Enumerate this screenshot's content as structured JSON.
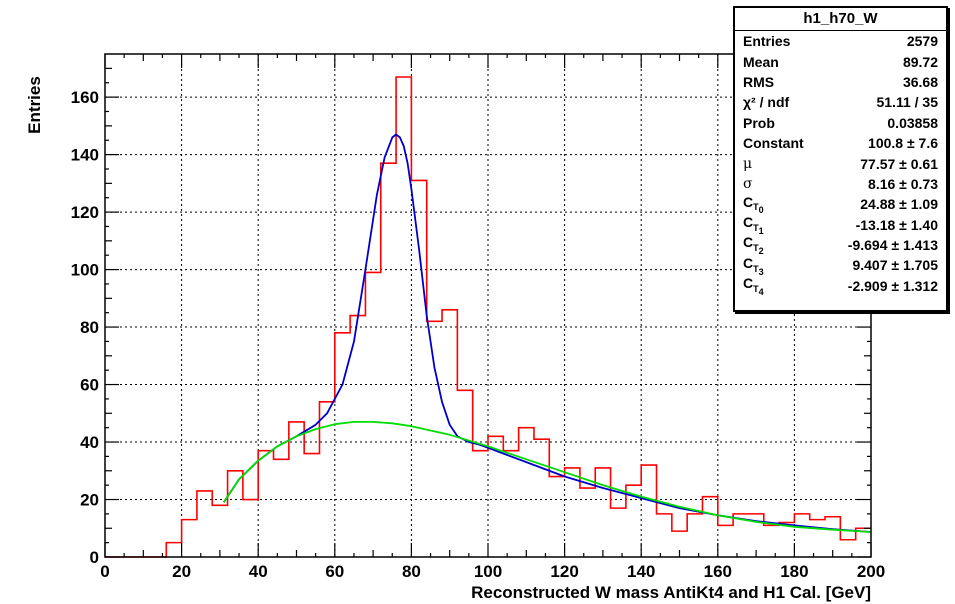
{
  "chart_data": {
    "type": "bar",
    "histogram": {
      "bin_edges_start": 0,
      "bin_width": 4,
      "values": [
        0,
        0,
        0,
        0,
        5,
        13,
        23,
        18,
        30,
        20,
        37,
        34,
        47,
        36,
        54,
        78,
        84,
        99,
        137,
        167,
        131,
        82,
        86,
        58,
        37,
        42,
        37,
        45,
        41,
        28,
        31,
        24,
        31,
        17,
        25,
        32,
        15,
        9,
        15,
        21,
        11,
        15,
        15,
        11,
        12,
        15,
        13,
        14,
        6,
        10
      ],
      "color": "#ff0000"
    },
    "fits": [
      {
        "x": [
          31,
          35,
          40,
          45,
          50,
          55,
          58,
          62,
          65,
          68,
          71,
          73,
          75,
          76,
          77,
          78,
          79,
          80,
          82,
          84,
          86,
          88,
          90,
          92,
          95,
          98,
          100,
          105,
          110,
          120,
          130,
          140,
          150,
          160,
          170,
          180,
          190,
          200
        ],
        "y": [
          19,
          27,
          33.5,
          38.5,
          42,
          46,
          50,
          60,
          75,
          100,
          126,
          139,
          146,
          147,
          146,
          143,
          137,
          128,
          107,
          84,
          66,
          54,
          46,
          42,
          40,
          39,
          38,
          35.5,
          33,
          28,
          24,
          20.5,
          17,
          14.5,
          12.5,
          11,
          9.7,
          8.7
        ],
        "color": "#0000cc"
      },
      {
        "x": [
          31,
          35,
          40,
          45,
          50,
          55,
          60,
          65,
          70,
          75,
          80,
          90,
          100,
          110,
          120,
          130,
          140,
          150,
          160,
          170,
          180,
          190,
          200
        ],
        "y": [
          19,
          27,
          33.5,
          38.5,
          42,
          44.5,
          46.2,
          47,
          47,
          46.5,
          45.5,
          42.5,
          38.5,
          34,
          29.5,
          25,
          21,
          17.5,
          14.5,
          12.2,
          10.5,
          9.5,
          8.7
        ],
        "color": "#00dd00"
      }
    ],
    "xlabel": "Reconstructed W mass AntiKt4 and H1 Cal. [GeV]",
    "ylabel": "Entries",
    "xlim": [
      0,
      200
    ],
    "ylim": [
      0,
      175
    ],
    "x_ticks": [
      0,
      20,
      40,
      60,
      80,
      100,
      120,
      140,
      160,
      180,
      200
    ],
    "y_ticks": [
      0,
      20,
      40,
      60,
      80,
      100,
      120,
      140,
      160
    ],
    "grid": true
  },
  "stats": {
    "title": "h1_h70_W",
    "rows": [
      {
        "label": "Entries",
        "value": "2579"
      },
      {
        "label": "Mean",
        "value": "89.72"
      },
      {
        "label": "RMS",
        "value": "36.68"
      },
      {
        "label": "χ² / ndf",
        "value": "51.11 / 35"
      },
      {
        "label": "Prob",
        "value": "0.03858"
      },
      {
        "label": "Constant",
        "value": "100.8 ± 7.6"
      },
      {
        "label": "μ",
        "value": "77.57 ± 0.61"
      },
      {
        "label": "σ",
        "value": "8.16 ± 0.73"
      },
      {
        "label": "C_T0",
        "value": "24.88 ± 1.09"
      },
      {
        "label": "C_T1",
        "value": "-13.18 ± 1.40"
      },
      {
        "label": "C_T2",
        "value": "-9.694 ± 1.413"
      },
      {
        "label": "C_T3",
        "value": "9.407 ± 1.705"
      },
      {
        "label": "C_T4",
        "value": "-2.909 ± 1.312"
      }
    ]
  }
}
